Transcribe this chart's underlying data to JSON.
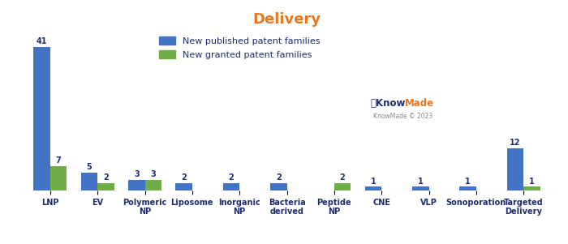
{
  "title": "Delivery",
  "title_color": "#E87722",
  "categories": [
    "LNP",
    "EV",
    "Polymeric\nNP",
    "Liposome",
    "Inorganic\nNP",
    "Bacteria\nderived",
    "Peptide\nNP",
    "CNE",
    "VLP",
    "Sonoporation",
    "Targeted\nDelivery"
  ],
  "published": [
    41,
    5,
    3,
    2,
    2,
    2,
    0,
    1,
    1,
    1,
    12
  ],
  "granted": [
    7,
    2,
    3,
    0,
    0,
    0,
    2,
    0,
    0,
    0,
    1
  ],
  "bar_color_published": "#4472C4",
  "bar_color_granted": "#70AD47",
  "legend_published": "New published patent families",
  "legend_granted": "New granted patent families",
  "background_color": "#FFFFFF",
  "grid_color": "#CCCCCC",
  "bar_width": 0.35,
  "ylim": [
    0,
    46
  ],
  "label_color": "#1F2D6E",
  "tick_color": "#1F2D6E",
  "knowmade_color1": "#1F2D6E",
  "knowmade_color2": "#E87722",
  "knowmade_sub_color": "#888888"
}
